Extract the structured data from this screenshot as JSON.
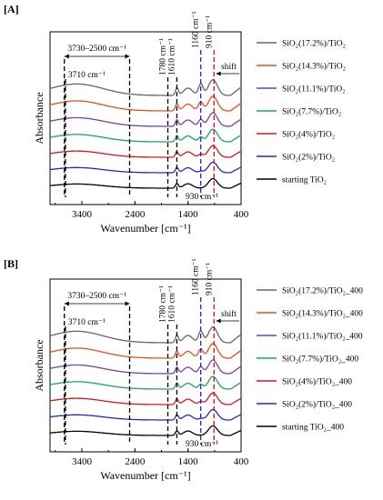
{
  "chart_data": [
    {
      "type": "line",
      "panel_label": "[A]",
      "xlabel": "Wavenumber [cm⁻¹]",
      "ylabel": "Absorbance",
      "x_reversed": true,
      "xlim": [
        4000,
        400
      ],
      "xticks": [
        3400,
        2400,
        1400,
        400
      ],
      "annotations": {
        "range_label": "3730–2500  cm⁻¹",
        "range": [
          3730,
          2500
        ],
        "line_3710": "3710  cm⁻¹",
        "line_1780": "1780 cm⁻¹",
        "line_1610": "1610 cm⁻¹",
        "line_1160": "1160 cm⁻¹",
        "line_910": "910 cm⁻¹",
        "shift": "shift",
        "label_930": "930 cm⁻¹"
      },
      "series": [
        {
          "name": "SiO₂(17.2%)/TiO₂",
          "color": "#666666"
        },
        {
          "name": "SiO₂(14.3%)/TiO₂",
          "color": "#e8501e"
        },
        {
          "name": "SiO₂(11.1%)/TiO₂",
          "color": "#7b3fa0"
        },
        {
          "name": "SiO₂(7.7%)/TiO₂",
          "color": "#17a864"
        },
        {
          "name": "SiO₂(4%)/TiO₂",
          "color": "#d7191c"
        },
        {
          "name": "SiO₂(2%)/TiO₂",
          "color": "#1f2bd0"
        },
        {
          "name": "starting TiO₂",
          "color": "#000000"
        }
      ]
    },
    {
      "type": "line",
      "panel_label": "[B]",
      "xlabel": "Wavenumber [cm⁻¹]",
      "ylabel": "Absorbance",
      "x_reversed": true,
      "xlim": [
        4000,
        400
      ],
      "xticks": [
        3400,
        2400,
        1400,
        400
      ],
      "annotations": {
        "range_label": "3730–2500  cm⁻¹",
        "range": [
          3730,
          2500
        ],
        "line_3710": "3710  cm⁻¹",
        "line_1780": "1780 cm⁻¹",
        "line_1610": "1610 cm⁻¹",
        "line_1160": "1160 cm⁻¹",
        "line_910": "910 cm⁻¹",
        "shift": "shift",
        "label_930": "930 cm⁻¹"
      },
      "series": [
        {
          "name": "SiO₂(17.2%)/TiO₂_400",
          "color": "#666666"
        },
        {
          "name": "SiO₂(14.3%)/TiO₂_400",
          "color": "#e8501e"
        },
        {
          "name": "SiO₂(11.1%)/TiO₂_400",
          "color": "#7b3fa0"
        },
        {
          "name": "SiO₂(7.7%)/TiO₂_400",
          "color": "#17a864"
        },
        {
          "name": "SiO₂(4%)/TiO₂_400",
          "color": "#d7191c"
        },
        {
          "name": "SiO₂(2%)/TiO₂_400",
          "color": "#1f2bd0"
        },
        {
          "name": "starting TiO₂_400",
          "color": "#000000"
        }
      ]
    }
  ]
}
